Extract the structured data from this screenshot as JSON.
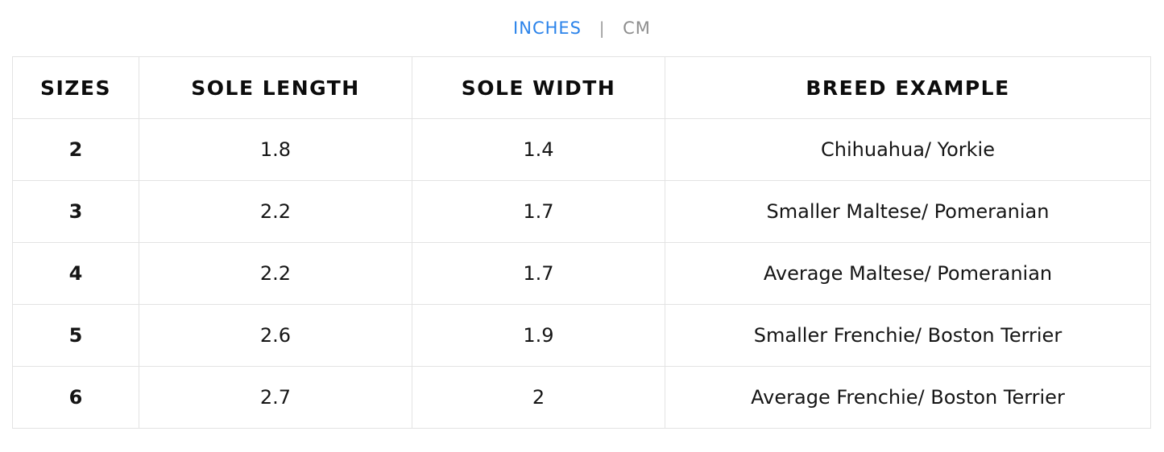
{
  "unit_toggle": {
    "active_label": "INCHES",
    "separator": "|",
    "inactive_label": "CM"
  },
  "table": {
    "headers": [
      "SIZES",
      "SOLE LENGTH",
      "SOLE WIDTH",
      "BREED EXAMPLE"
    ],
    "rows": [
      {
        "size": "2",
        "sole_length": "1.8",
        "sole_width": "1.4",
        "breed": "Chihuahua/ Yorkie"
      },
      {
        "size": "3",
        "sole_length": "2.2",
        "sole_width": "1.7",
        "breed": "Smaller Maltese/ Pomeranian"
      },
      {
        "size": "4",
        "sole_length": "2.2",
        "sole_width": "1.7",
        "breed": "Average Maltese/ Pomeranian"
      },
      {
        "size": "5",
        "sole_length": "2.6",
        "sole_width": "1.9",
        "breed": "Smaller Frenchie/ Boston Terrier"
      },
      {
        "size": "6",
        "sole_length": "2.7",
        "sole_width": "2",
        "breed": "Average Frenchie/ Boston Terrier"
      }
    ]
  },
  "colors": {
    "active_unit": "#2b83ea",
    "inactive_unit": "#8e8e8e",
    "border": "#e3e3e3"
  }
}
